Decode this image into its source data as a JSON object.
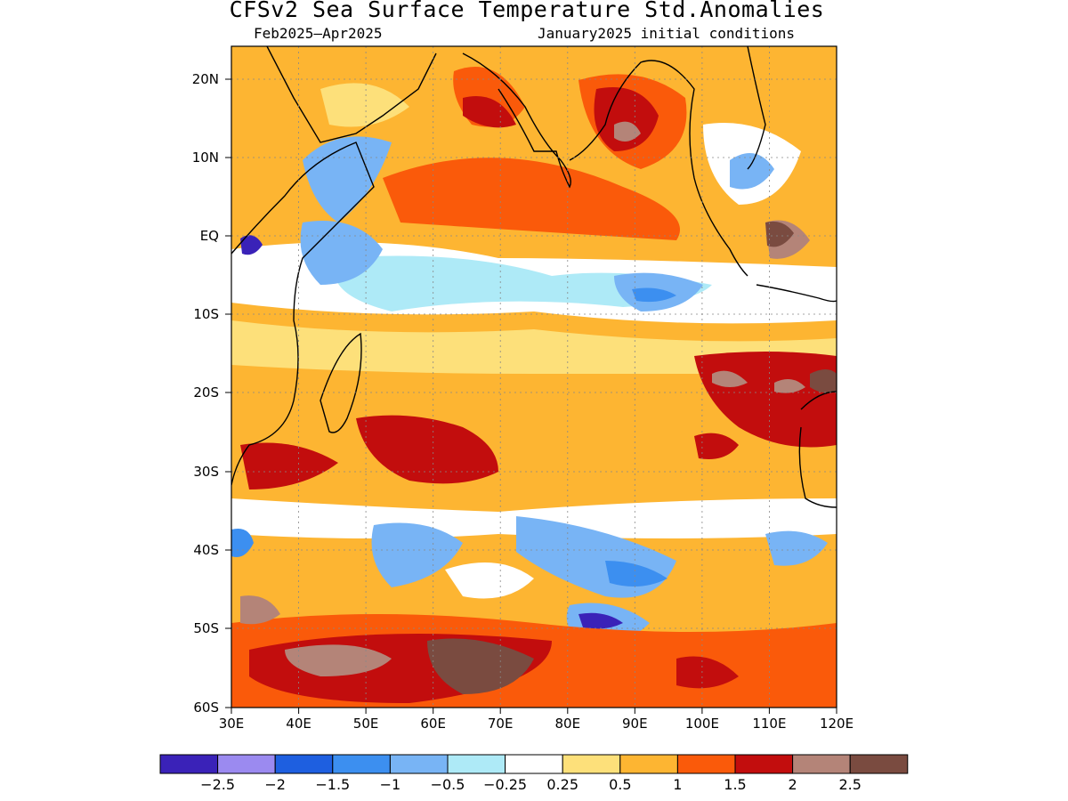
{
  "title": "CFSv2 Sea Surface Temperature Std.Anomalies",
  "subtitle_left": "Feb2025–Apr2025",
  "subtitle_right": "January2025 initial conditions",
  "lat_labels": [
    "20N",
    "10N",
    "EQ",
    "10S",
    "20S",
    "30S",
    "40S",
    "50S",
    "60S"
  ],
  "lon_labels": [
    "30E",
    "40E",
    "50E",
    "60E",
    "70E",
    "80E",
    "90E",
    "100E",
    "110E",
    "120E"
  ],
  "colorbar": {
    "colors": [
      "#3a22b8",
      "#9b8af0",
      "#1e5fe0",
      "#3c8ff0",
      "#78b4f5",
      "#aeeaf7",
      "#ffffff",
      "#fde07a",
      "#fdb532",
      "#fa5a0a",
      "#c20d0d",
      "#b48478",
      "#7a4b40"
    ],
    "labels": [
      "−2.5",
      "−2",
      "−1.5",
      "−1",
      "−0.5",
      "−0.25",
      "0.25",
      "0.5",
      "1",
      "1.5",
      "2",
      "2.5"
    ]
  }
}
